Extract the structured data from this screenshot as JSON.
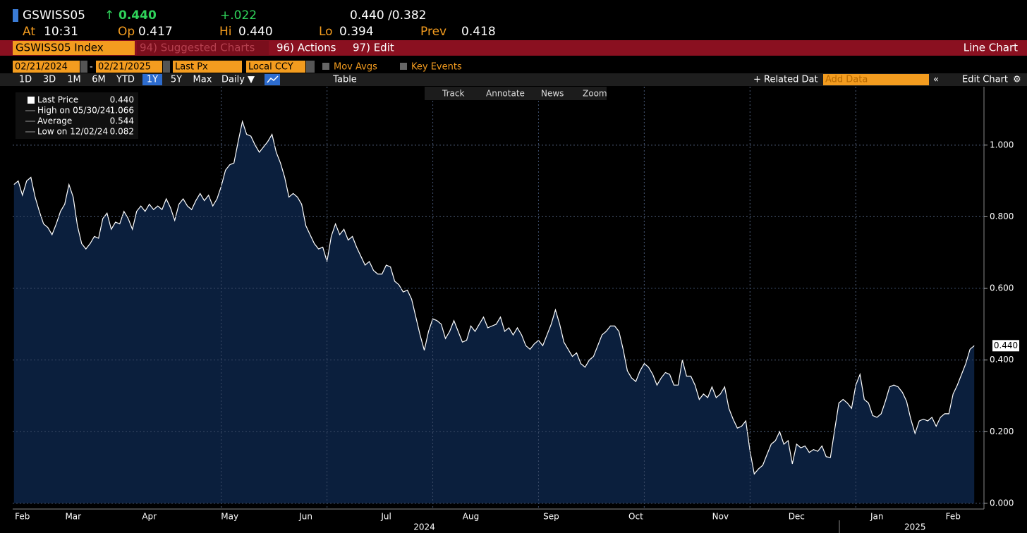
{
  "header": {
    "ticker": "GSWISS05",
    "last": "0.440",
    "change": "+.022",
    "bid_ask": "0.440 /0.382",
    "fields": [
      {
        "label": "At",
        "value": "10:31"
      },
      {
        "label": "Op",
        "value": "0.417"
      },
      {
        "label": "Hi",
        "value": "0.440"
      },
      {
        "label": "Lo",
        "value": "0.394"
      },
      {
        "label": "Prev",
        "value": "0.418"
      }
    ]
  },
  "toolbar": {
    "security": "GSWISS05 Index",
    "menus": [
      "94) Suggested Charts",
      "96) Actions",
      "97) Edit"
    ],
    "view": "Line Chart"
  },
  "controls": {
    "start": "02/21/2024",
    "end": "02/21/2025",
    "field": "Last Px",
    "currency": "Local CCY",
    "options": [
      "Mov Avgs",
      "Key Events"
    ],
    "ranges": [
      "1D",
      "3D",
      "1M",
      "6M",
      "YTD",
      "1Y",
      "5Y",
      "Max"
    ],
    "active_range": "1Y",
    "frequency": "Daily ▼",
    "table": "Table",
    "related": "Related Dat",
    "add_data": "Add Data",
    "edit_chart": "Edit Chart",
    "tools": [
      "Track",
      "Annotate",
      "News",
      "Zoom"
    ]
  },
  "chart_data": {
    "type": "area",
    "legend": [
      {
        "label": "Last Price",
        "value": "0.440"
      },
      {
        "label": "High on 05/30/24",
        "value": "1.066"
      },
      {
        "label": "Average",
        "value": "0.544"
      },
      {
        "label": "Low on 12/02/24",
        "value": "0.082"
      }
    ],
    "color": "#0b1f3d",
    "line_color": "#ffffff",
    "values": [
      0.89,
      0.9,
      0.86,
      0.9,
      0.91,
      0.855,
      0.815,
      0.78,
      0.77,
      0.75,
      0.78,
      0.815,
      0.835,
      0.89,
      0.855,
      0.775,
      0.725,
      0.71,
      0.725,
      0.745,
      0.74,
      0.795,
      0.81,
      0.765,
      0.785,
      0.78,
      0.815,
      0.795,
      0.765,
      0.815,
      0.83,
      0.815,
      0.835,
      0.82,
      0.83,
      0.82,
      0.85,
      0.825,
      0.79,
      0.835,
      0.85,
      0.83,
      0.82,
      0.845,
      0.865,
      0.845,
      0.86,
      0.83,
      0.85,
      0.885,
      0.93,
      0.945,
      0.95,
      1.01,
      1.066,
      1.03,
      1.025,
      1.0,
      0.98,
      0.995,
      1.01,
      1.03,
      0.98,
      0.95,
      0.91,
      0.855,
      0.865,
      0.855,
      0.835,
      0.775,
      0.75,
      0.725,
      0.71,
      0.715,
      0.675,
      0.745,
      0.78,
      0.75,
      0.765,
      0.735,
      0.745,
      0.715,
      0.69,
      0.665,
      0.675,
      0.65,
      0.64,
      0.64,
      0.665,
      0.66,
      0.62,
      0.61,
      0.59,
      0.595,
      0.57,
      0.52,
      0.47,
      0.427,
      0.48,
      0.515,
      0.51,
      0.5,
      0.46,
      0.48,
      0.51,
      0.48,
      0.45,
      0.455,
      0.495,
      0.48,
      0.5,
      0.52,
      0.49,
      0.495,
      0.5,
      0.52,
      0.48,
      0.49,
      0.47,
      0.49,
      0.47,
      0.44,
      0.43,
      0.445,
      0.455,
      0.44,
      0.47,
      0.5,
      0.54,
      0.5,
      0.45,
      0.43,
      0.41,
      0.42,
      0.39,
      0.38,
      0.4,
      0.41,
      0.44,
      0.47,
      0.48,
      0.495,
      0.495,
      0.48,
      0.43,
      0.37,
      0.35,
      0.34,
      0.37,
      0.39,
      0.38,
      0.36,
      0.33,
      0.35,
      0.365,
      0.36,
      0.33,
      0.33,
      0.4,
      0.355,
      0.355,
      0.33,
      0.29,
      0.305,
      0.295,
      0.325,
      0.295,
      0.305,
      0.325,
      0.265,
      0.235,
      0.21,
      0.215,
      0.23,
      0.145,
      0.082,
      0.096,
      0.106,
      0.136,
      0.165,
      0.175,
      0.2,
      0.165,
      0.175,
      0.11,
      0.165,
      0.155,
      0.16,
      0.142,
      0.15,
      0.145,
      0.16,
      0.13,
      0.128,
      0.205,
      0.28,
      0.29,
      0.28,
      0.265,
      0.33,
      0.36,
      0.29,
      0.28,
      0.245,
      0.24,
      0.25,
      0.285,
      0.325,
      0.33,
      0.325,
      0.31,
      0.285,
      0.235,
      0.195,
      0.23,
      0.235,
      0.23,
      0.24,
      0.215,
      0.24,
      0.25,
      0.25,
      0.305,
      0.33,
      0.36,
      0.39,
      0.43,
      0.44
    ],
    "last_label": "0.440",
    "xlim": [
      -0.3,
      229.3
    ],
    "xticks": [
      {
        "value": 2,
        "label": "Feb"
      },
      {
        "value": 14,
        "label": "Mar"
      },
      {
        "value": 32,
        "label": "Apr"
      },
      {
        "value": 51,
        "label": "May"
      },
      {
        "value": 69,
        "label": "Jun"
      },
      {
        "value": 88,
        "label": "Jul"
      },
      {
        "value": 108,
        "label": "Aug"
      },
      {
        "value": 127,
        "label": "Sep"
      },
      {
        "value": 147,
        "label": "Oct"
      },
      {
        "value": 167,
        "label": "Nov"
      },
      {
        "value": 185,
        "label": "Dec"
      },
      {
        "value": 204,
        "label": "Jan"
      },
      {
        "value": 222,
        "label": "Feb"
      }
    ],
    "year_labels": [
      {
        "value": 97,
        "label": "2024"
      },
      {
        "value": 213,
        "label": "2025"
      }
    ],
    "xgrid": [
      49,
      74,
      99,
      124,
      149,
      174,
      199
    ],
    "ylim": [
      -0.016,
      1.163
    ],
    "yticks": [
      {
        "value": 0,
        "label": "0.000"
      },
      {
        "value": 0.2,
        "label": "0.200"
      },
      {
        "value": 0.4,
        "label": "0.400"
      },
      {
        "value": 0.6,
        "label": "0.600"
      },
      {
        "value": 0.8,
        "label": "0.800"
      },
      {
        "value": 1.0,
        "label": "1.000"
      }
    ],
    "grid": true
  }
}
